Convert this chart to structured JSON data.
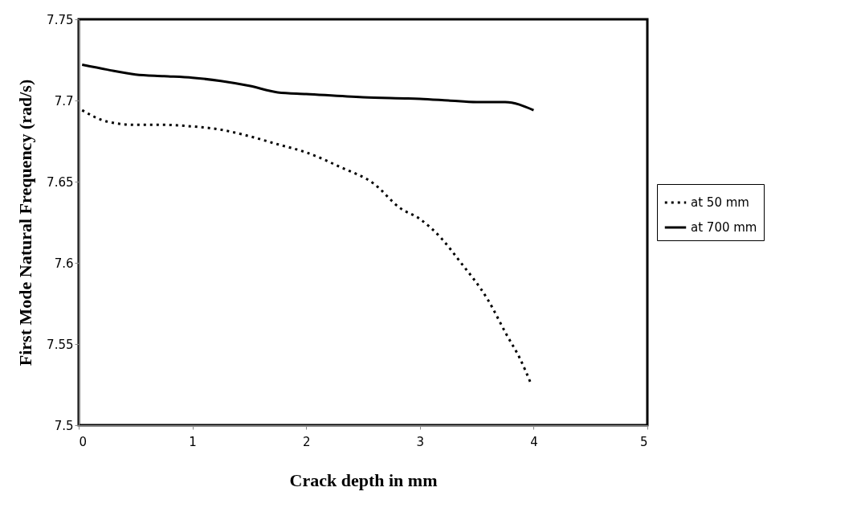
{
  "chart_data": {
    "type": "line",
    "xlabel": "Crack depth in mm",
    "ylabel": "First Mode Natural Frequency (rad/s)",
    "xlim": [
      0,
      5
    ],
    "xticks": [
      0,
      1,
      2,
      3,
      4,
      5
    ],
    "ylim": [
      7.5,
      7.75
    ],
    "yticks": [
      7.5,
      7.55,
      7.6,
      7.65,
      7.7,
      7.75
    ],
    "grid": false,
    "legend": "right",
    "marker": "none",
    "series": [
      {
        "name": "at 50 mm",
        "color": "#000000",
        "line_style": "dotted",
        "x": [
          0.03,
          0.25,
          0.5,
          0.75,
          1,
          1.25,
          1.5,
          1.75,
          2,
          2.3,
          2.6,
          2.82,
          3,
          3.19,
          3.35,
          3.6,
          3.76,
          3.88,
          3.98
        ],
        "values": [
          7.694,
          7.687,
          7.685,
          7.685,
          7.684,
          7.682,
          7.678,
          7.673,
          7.668,
          7.659,
          7.6485,
          7.634,
          7.627,
          7.615,
          7.601,
          7.577,
          7.556,
          7.541,
          7.525
        ]
      },
      {
        "name": "at 700 mm",
        "color": "#000000",
        "line_style": "solid",
        "x": [
          0.03,
          0.25,
          0.5,
          0.75,
          1,
          1.25,
          1.5,
          1.75,
          2,
          2.5,
          3,
          3.25,
          3.5,
          3.75,
          4
        ],
        "values": [
          7.722,
          7.719,
          7.716,
          7.715,
          7.714,
          7.712,
          7.709,
          7.705,
          7.704,
          7.702,
          7.701,
          7.7,
          7.699,
          7.699,
          7.694
        ]
      }
    ]
  }
}
